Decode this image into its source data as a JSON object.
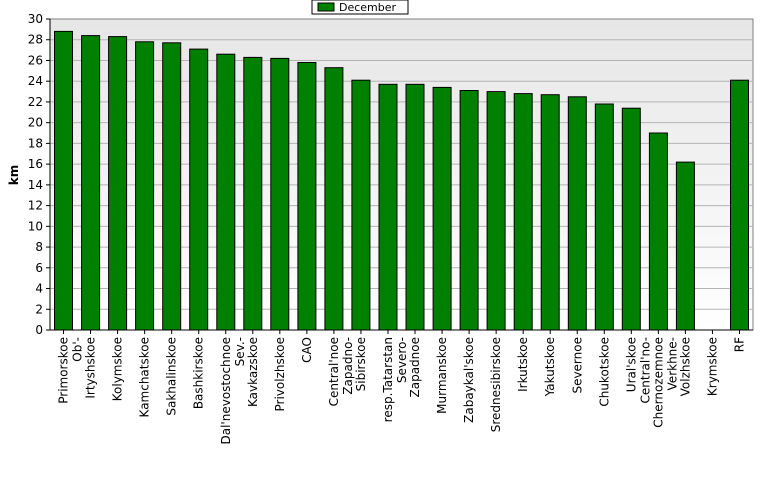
{
  "chart_data": {
    "type": "bar",
    "title": "",
    "xlabel": "",
    "ylabel": "km",
    "ylim": [
      0,
      30
    ],
    "ytick_step": 2,
    "grid": true,
    "legend_position": "top-center",
    "categories": [
      "Primorskoe",
      "Ob'-Irtyshskoe",
      "Kolymskoe",
      "Kamchatskoe",
      "Sakhalinskoe",
      "Bashkirskoe",
      "Dal'nevostochnoe",
      "Sev.-Kavkazskoe",
      "Privolzhskoe",
      "CAO",
      "Central'noe",
      "Zapadno-Sibirskoe",
      "resp.Tatarstan",
      "Severo-Zapadnoe",
      "Murmanskoe",
      "Zabaykal'skoe",
      "Srednesibirskoe",
      "Irkutskoe",
      "Yakutskoe",
      "Severnoe",
      "Chukotskoe",
      "Ural'skoe",
      "Central'no-Chernozemnoe",
      "Verkhne-Volzhskoe",
      "Krymskoe",
      "RF"
    ],
    "category_lines": [
      [
        "Primorskoe"
      ],
      [
        "Ob'-",
        "Irtyshskoe"
      ],
      [
        "Kolymskoe"
      ],
      [
        "Kamchatskoe"
      ],
      [
        "Sakhalinskoe"
      ],
      [
        "Bashkirskoe"
      ],
      [
        "Dal'nevostochnoe"
      ],
      [
        "Sev.-",
        "Kavkazskoe"
      ],
      [
        "Privolzhskoe"
      ],
      [
        "CAO"
      ],
      [
        "Central'noe"
      ],
      [
        "Zapadno-",
        "Sibirskoe"
      ],
      [
        "resp.Tatarstan"
      ],
      [
        "Severo-",
        "Zapadnoe"
      ],
      [
        "Murmanskoe"
      ],
      [
        "Zabaykal'skoe"
      ],
      [
        "Srednesibirskoe"
      ],
      [
        "Irkutskoe"
      ],
      [
        "Yakutskoe"
      ],
      [
        "Severnoe"
      ],
      [
        "Chukotskoe"
      ],
      [
        "Ural'skoe"
      ],
      [
        "Central'no-",
        "Chernozemnoe"
      ],
      [
        "Verkhne-",
        "Volzhskoe"
      ],
      [
        "Krymskoe"
      ],
      [
        "RF"
      ]
    ],
    "series": [
      {
        "name": "December",
        "color": "#008000",
        "values": [
          28.8,
          28.4,
          28.3,
          27.8,
          27.7,
          27.1,
          26.6,
          26.3,
          26.2,
          25.8,
          25.3,
          24.1,
          23.7,
          23.7,
          23.4,
          23.1,
          23.0,
          22.8,
          22.7,
          22.5,
          21.8,
          21.4,
          19.0,
          16.2,
          0,
          24.1
        ]
      }
    ]
  }
}
